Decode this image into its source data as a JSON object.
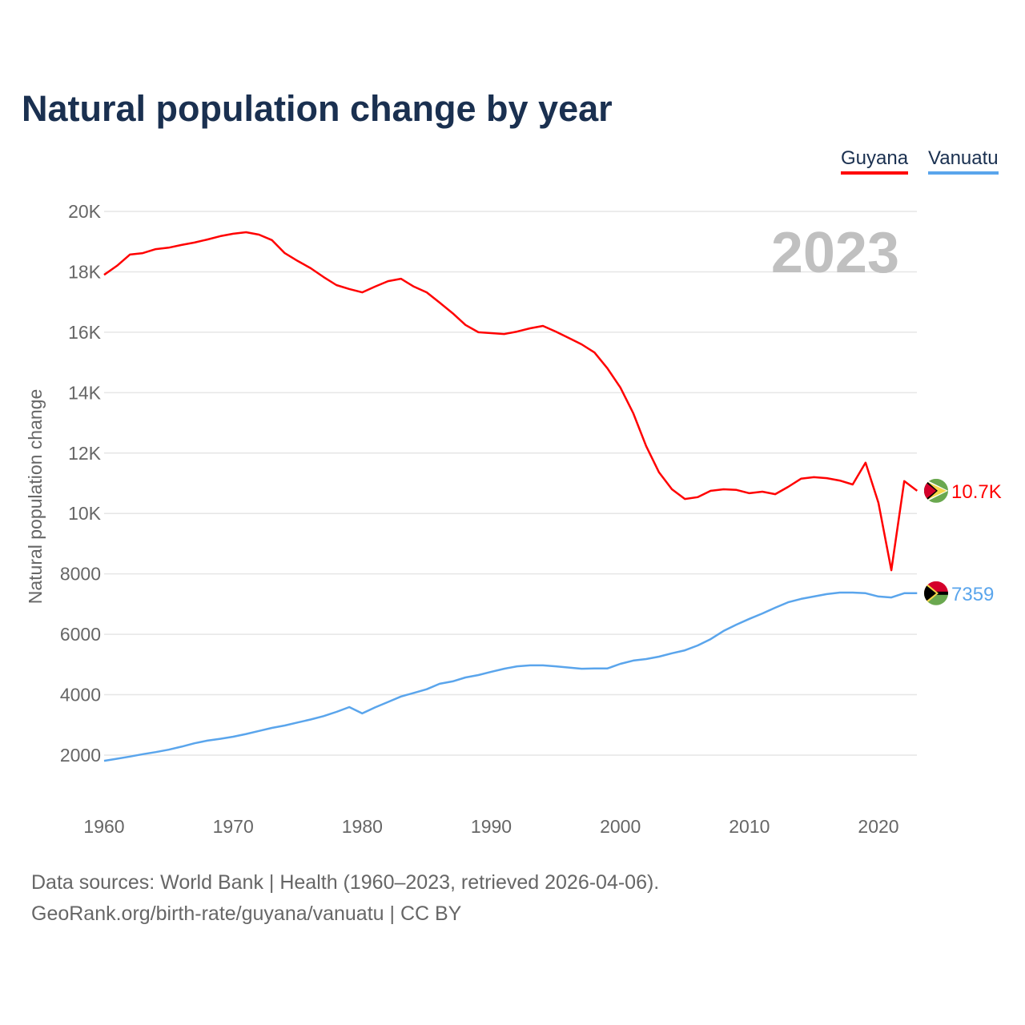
{
  "title": "Natural population change by year",
  "footer": {
    "line1": "Data sources: World Bank | Health (1960–2023, retrieved 2026-04-06).",
    "line2": "GeoRank.org/birth-rate/guyana/vanuatu | CC BY"
  },
  "chart_data": {
    "type": "line",
    "title": "Natural population change by year",
    "ylabel": "Natural population change",
    "xlabel": "",
    "year_watermark": "2023",
    "xlim": [
      1960,
      2023
    ],
    "ylim": [
      0,
      21000
    ],
    "x_ticks": [
      1960,
      1970,
      1980,
      1990,
      2000,
      2010,
      2020
    ],
    "y_ticks": [
      {
        "v": 2000,
        "label": "2000"
      },
      {
        "v": 4000,
        "label": "4000"
      },
      {
        "v": 6000,
        "label": "6000"
      },
      {
        "v": 8000,
        "label": "8000"
      },
      {
        "v": 10000,
        "label": "10K"
      },
      {
        "v": 12000,
        "label": "12K"
      },
      {
        "v": 14000,
        "label": "14K"
      },
      {
        "v": 16000,
        "label": "16K"
      },
      {
        "v": 18000,
        "label": "18K"
      },
      {
        "v": 20000,
        "label": "20K"
      }
    ],
    "legend_position": "top-right",
    "series": [
      {
        "name": "Guyana",
        "color": "#ff0000",
        "end_label": "10.7K",
        "flag": "guyana-flag",
        "values": [
          17900,
          18200,
          18570,
          18620,
          18750,
          18800,
          18890,
          18970,
          19070,
          19180,
          19260,
          19310,
          19230,
          19050,
          18620,
          18360,
          18120,
          17830,
          17560,
          17430,
          17320,
          17510,
          17690,
          17770,
          17510,
          17320,
          16980,
          16630,
          16240,
          16000,
          15970,
          15940,
          16020,
          16130,
          16210,
          16020,
          15810,
          15600,
          15330,
          14800,
          14170,
          13320,
          12230,
          11360,
          10800,
          10480,
          10540,
          10750,
          10800,
          10780,
          10670,
          10720,
          10640,
          10880,
          11150,
          11200,
          11170,
          11090,
          10960,
          11680,
          10350,
          8120,
          11070,
          10750
        ]
      },
      {
        "name": "Vanuatu",
        "color": "#5aa5ec",
        "end_label": "7359",
        "flag": "vanuatu-flag",
        "values": [
          1810,
          1880,
          1950,
          2030,
          2100,
          2180,
          2280,
          2390,
          2480,
          2540,
          2610,
          2700,
          2800,
          2900,
          2980,
          3080,
          3180,
          3290,
          3430,
          3590,
          3380,
          3580,
          3760,
          3940,
          4060,
          4180,
          4360,
          4440,
          4570,
          4650,
          4760,
          4860,
          4940,
          4970,
          4970,
          4940,
          4900,
          4860,
          4870,
          4870,
          5020,
          5130,
          5180,
          5260,
          5370,
          5470,
          5630,
          5840,
          6110,
          6320,
          6510,
          6690,
          6880,
          7060,
          7170,
          7250,
          7330,
          7380,
          7380,
          7360,
          7250,
          7220,
          7360,
          7359
        ]
      }
    ]
  }
}
